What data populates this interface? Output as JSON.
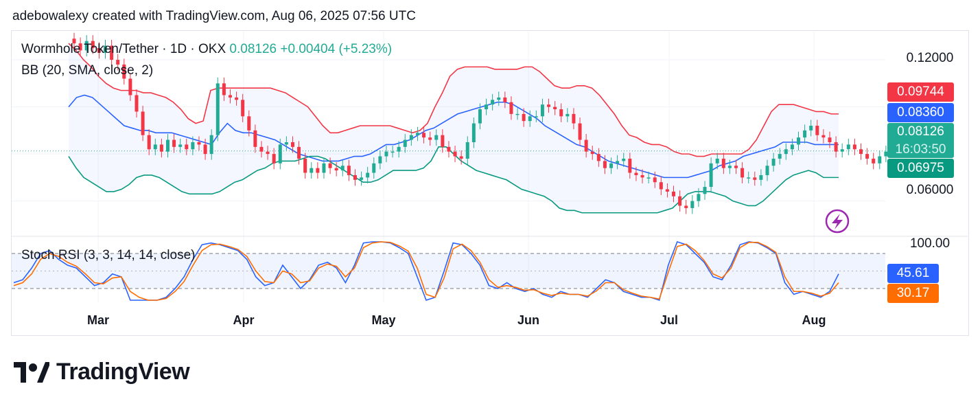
{
  "header": {
    "text": "adebowalexy created with TradingView.com, Aug 06, 2025 07:56 UTC"
  },
  "legend": {
    "symbol": "Wormhole Token/Tether · 1D · OKX",
    "price": "0.08126",
    "change": "+0.00404 (+5.23%)",
    "bb": "BB (20, SMA, close, 2)",
    "stoch": "Stoch RSI (3, 3, 14, 14, close)"
  },
  "price_axis": {
    "labels": [
      "0.12000",
      "0.06000"
    ]
  },
  "stoch_axis": {
    "labels": [
      "100.00"
    ]
  },
  "badges": {
    "upper": {
      "value": "0.09744",
      "color": "#f23645"
    },
    "middle": {
      "value": "0.08360",
      "color": "#2962ff"
    },
    "last": {
      "value": "0.08126",
      "countdown": "16:03:50",
      "color": "#22ab94"
    },
    "lower": {
      "value": "0.06975",
      "color": "#089981"
    },
    "k": {
      "value": "45.61",
      "color": "#2962ff"
    },
    "d": {
      "value": "30.17",
      "color": "#ff6d00"
    }
  },
  "months": [
    "Mar",
    "Apr",
    "May",
    "Jun",
    "Jul",
    "Aug"
  ],
  "icon": {
    "name": "lightning-icon",
    "color": "#9c27b0"
  },
  "logo": {
    "text": "TradingView"
  },
  "chart_data": {
    "type": "candlestick",
    "symbol": "Wormhole Token/Tether",
    "interval": "1D",
    "exchange": "OKX",
    "x_range": [
      "Feb 2025",
      "Aug 06, 2025"
    ],
    "ylim": [
      0.045,
      0.132
    ],
    "last": 0.08126,
    "bollinger": {
      "upper": 0.09744,
      "basis": 0.0836,
      "lower": 0.06975,
      "upper_path": [
        0.127,
        0.124,
        0.12,
        0.117,
        0.113,
        0.11,
        0.108,
        0.107,
        0.107,
        0.107,
        0.106,
        0.106,
        0.105,
        0.104,
        0.102,
        0.099,
        0.095,
        0.093,
        0.094,
        0.107,
        0.108,
        0.108,
        0.108,
        0.108,
        0.108,
        0.108,
        0.108,
        0.108,
        0.107,
        0.106,
        0.104,
        0.102,
        0.1,
        0.096,
        0.092,
        0.089,
        0.089,
        0.09,
        0.091,
        0.092,
        0.092,
        0.092,
        0.092,
        0.092,
        0.091,
        0.09,
        0.089,
        0.09,
        0.093,
        0.1,
        0.106,
        0.113,
        0.116,
        0.117,
        0.117,
        0.117,
        0.117,
        0.116,
        0.116,
        0.116,
        0.116,
        0.117,
        0.117,
        0.115,
        0.112,
        0.109,
        0.108,
        0.108,
        0.109,
        0.109,
        0.108,
        0.105,
        0.101,
        0.097,
        0.092,
        0.088,
        0.087,
        0.085,
        0.084,
        0.084,
        0.083,
        0.081,
        0.08,
        0.08,
        0.079,
        0.079,
        0.08,
        0.08,
        0.08,
        0.08,
        0.08,
        0.082,
        0.086,
        0.092,
        0.098,
        0.101,
        0.101,
        0.101,
        0.1,
        0.099,
        0.098,
        0.098,
        0.097,
        0.097
      ],
      "basis_path": [
        0.1,
        0.104,
        0.105,
        0.104,
        0.101,
        0.098,
        0.095,
        0.092,
        0.091,
        0.09,
        0.09,
        0.089,
        0.089,
        0.089,
        0.088,
        0.087,
        0.086,
        0.085,
        0.084,
        0.089,
        0.093,
        0.09,
        0.089,
        0.089,
        0.088,
        0.087,
        0.086,
        0.084,
        0.082,
        0.08,
        0.079,
        0.078,
        0.077,
        0.077,
        0.077,
        0.078,
        0.079,
        0.079,
        0.08,
        0.082,
        0.084,
        0.084,
        0.085,
        0.086,
        0.088,
        0.09,
        0.091,
        0.093,
        0.095,
        0.097,
        0.098,
        0.099,
        0.1,
        0.101,
        0.102,
        0.102,
        0.101,
        0.099,
        0.097,
        0.095,
        0.092,
        0.09,
        0.088,
        0.086,
        0.084,
        0.083,
        0.081,
        0.079,
        0.077,
        0.076,
        0.075,
        0.074,
        0.073,
        0.072,
        0.071,
        0.07,
        0.07,
        0.07,
        0.07,
        0.071,
        0.072,
        0.073,
        0.075,
        0.076,
        0.077,
        0.079,
        0.08,
        0.081,
        0.082,
        0.083,
        0.085,
        0.085,
        0.085,
        0.085,
        0.084,
        0.084,
        0.084,
        0.084
      ],
      "lower_path": [
        0.079,
        0.074,
        0.07,
        0.068,
        0.066,
        0.064,
        0.064,
        0.065,
        0.067,
        0.07,
        0.071,
        0.071,
        0.07,
        0.068,
        0.066,
        0.064,
        0.063,
        0.063,
        0.063,
        0.063,
        0.064,
        0.066,
        0.068,
        0.069,
        0.071,
        0.073,
        0.074,
        0.076,
        0.077,
        0.077,
        0.077,
        0.078,
        0.079,
        0.079,
        0.078,
        0.076,
        0.074,
        0.072,
        0.07,
        0.068,
        0.068,
        0.069,
        0.071,
        0.073,
        0.073,
        0.073,
        0.073,
        0.074,
        0.077,
        0.083,
        0.083,
        0.08,
        0.077,
        0.075,
        0.073,
        0.072,
        0.071,
        0.07,
        0.069,
        0.067,
        0.065,
        0.064,
        0.063,
        0.062,
        0.06,
        0.057,
        0.056,
        0.056,
        0.055,
        0.055,
        0.055,
        0.055,
        0.055,
        0.055,
        0.055,
        0.055,
        0.055,
        0.055,
        0.055,
        0.056,
        0.057,
        0.06,
        0.063,
        0.064,
        0.064,
        0.064,
        0.063,
        0.062,
        0.06,
        0.059,
        0.058,
        0.058,
        0.06,
        0.063,
        0.066,
        0.069,
        0.071,
        0.072,
        0.073,
        0.072,
        0.07,
        0.07,
        0.07
      ]
    },
    "closes": [
      0.127,
      0.124,
      0.128,
      0.125,
      0.123,
      0.126,
      0.12,
      0.118,
      0.112,
      0.105,
      0.098,
      0.088,
      0.082,
      0.084,
      0.081,
      0.086,
      0.083,
      0.084,
      0.082,
      0.085,
      0.084,
      0.08,
      0.088,
      0.11,
      0.105,
      0.104,
      0.103,
      0.096,
      0.09,
      0.083,
      0.081,
      0.08,
      0.076,
      0.084,
      0.085,
      0.083,
      0.078,
      0.072,
      0.074,
      0.072,
      0.076,
      0.074,
      0.073,
      0.075,
      0.071,
      0.069,
      0.07,
      0.072,
      0.076,
      0.079,
      0.081,
      0.081,
      0.083,
      0.086,
      0.088,
      0.089,
      0.087,
      0.086,
      0.088,
      0.083,
      0.081,
      0.079,
      0.078,
      0.085,
      0.093,
      0.099,
      0.101,
      0.103,
      0.104,
      0.102,
      0.097,
      0.097,
      0.094,
      0.096,
      0.096,
      0.101,
      0.1,
      0.099,
      0.096,
      0.097,
      0.093,
      0.086,
      0.081,
      0.08,
      0.077,
      0.074,
      0.076,
      0.077,
      0.078,
      0.072,
      0.071,
      0.07,
      0.07,
      0.068,
      0.065,
      0.064,
      0.062,
      0.058,
      0.057,
      0.06,
      0.063,
      0.066,
      0.076,
      0.078,
      0.074,
      0.075,
      0.074,
      0.07,
      0.07,
      0.069,
      0.071,
      0.075,
      0.078,
      0.08,
      0.082,
      0.084,
      0.087,
      0.09,
      0.092,
      0.088,
      0.087,
      0.085,
      0.081,
      0.082,
      0.084,
      0.082,
      0.08,
      0.078,
      0.076,
      0.079,
      0.081
    ]
  },
  "stoch_data": {
    "type": "line",
    "ylim": [
      0,
      100
    ],
    "band": [
      80,
      20
    ],
    "series": [
      {
        "name": "K",
        "color": "#2962ff",
        "values": [
          30,
          35,
          55,
          80,
          85,
          70,
          60,
          55,
          40,
          25,
          30,
          45,
          40,
          0,
          0,
          0,
          0,
          5,
          20,
          40,
          70,
          95,
          98,
          95,
          90,
          85,
          70,
          40,
          25,
          30,
          60,
          40,
          20,
          35,
          60,
          65,
          55,
          30,
          60,
          98,
          100,
          100,
          98,
          90,
          80,
          40,
          0,
          5,
          50,
          98,
          95,
          80,
          60,
          25,
          20,
          30,
          20,
          15,
          20,
          10,
          5,
          15,
          10,
          10,
          5,
          20,
          35,
          30,
          15,
          10,
          5,
          5,
          0,
          60,
          100,
          95,
          80,
          65,
          40,
          35,
          60,
          95,
          100,
          98,
          90,
          80,
          30,
          10,
          15,
          10,
          5,
          15,
          45
        ]
      },
      {
        "name": "D",
        "color": "#ff6d00",
        "values": [
          25,
          30,
          45,
          70,
          80,
          75,
          65,
          58,
          45,
          30,
          28,
          38,
          40,
          15,
          5,
          0,
          0,
          3,
          15,
          32,
          60,
          85,
          95,
          96,
          92,
          87,
          75,
          50,
          32,
          30,
          50,
          45,
          30,
          33,
          55,
          62,
          58,
          40,
          55,
          90,
          98,
          100,
          99,
          93,
          84,
          55,
          10,
          5,
          38,
          88,
          96,
          85,
          65,
          35,
          22,
          25,
          22,
          17,
          18,
          12,
          8,
          12,
          10,
          10,
          7,
          16,
          30,
          30,
          18,
          12,
          7,
          5,
          2,
          48,
          92,
          96,
          85,
          68,
          45,
          38,
          55,
          90,
          99,
          99,
          92,
          82,
          40,
          15,
          15,
          12,
          7,
          12,
          30
        ]
      }
    ]
  }
}
